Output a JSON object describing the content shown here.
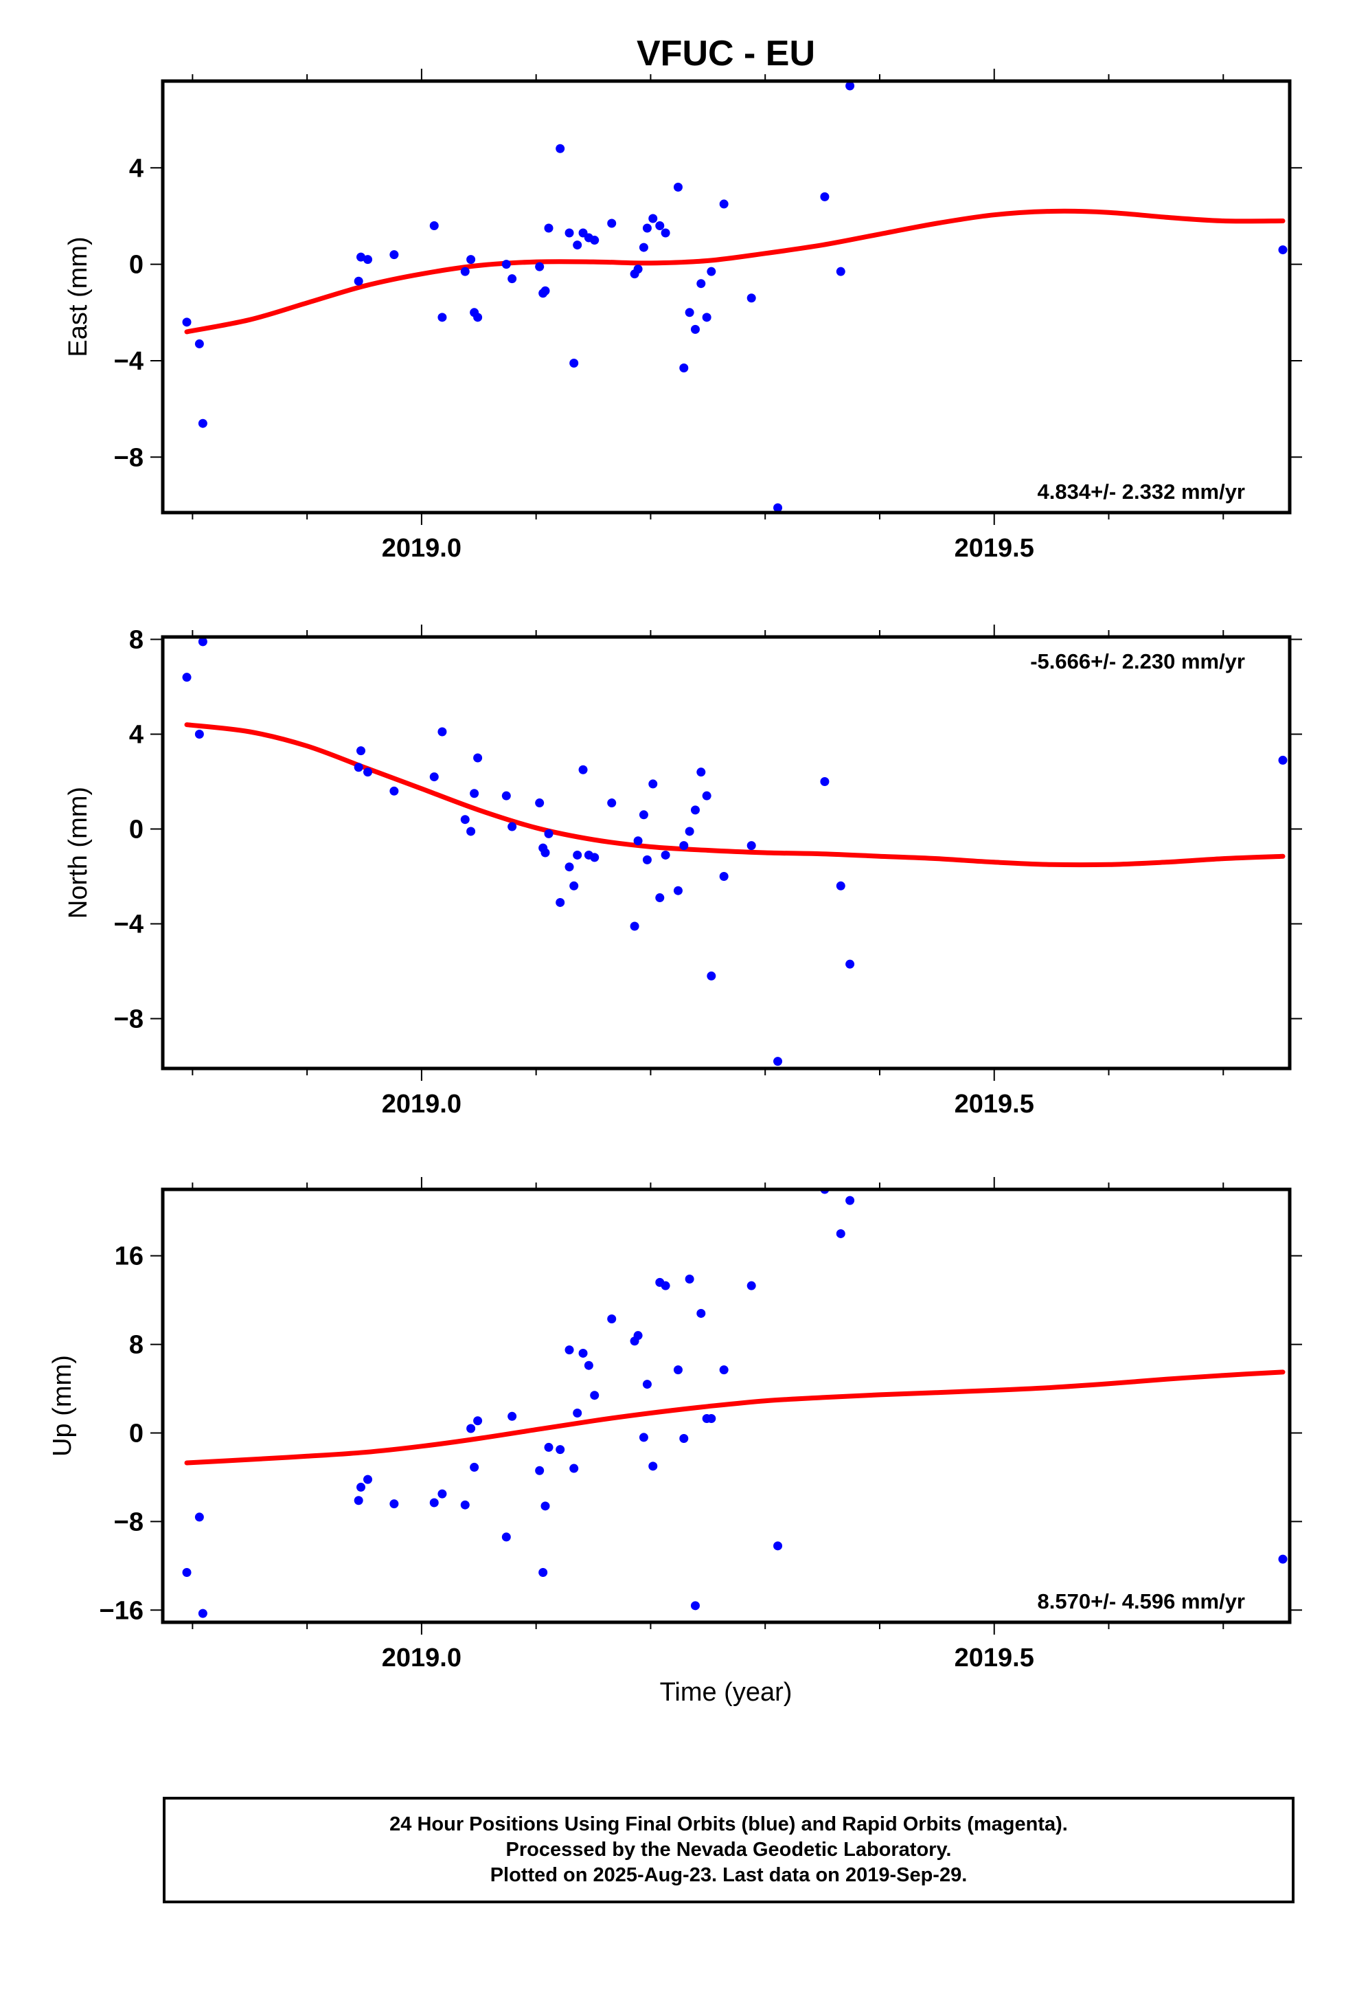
{
  "title": "VFUC - EU",
  "xlabel": "Time (year)",
  "caption": {
    "line1": "24 Hour Positions Using Final Orbits (blue) and Rapid Orbits (magenta).",
    "line2": "Processed by the Nevada Geodetic Laboratory.",
    "line3": "Plotted on 2025-Aug-23. Last data on 2019-Sep-29."
  },
  "colors": {
    "points": "#0000ff",
    "fit": "#ff0000",
    "axes": "#000000"
  },
  "chart_data": [
    {
      "type": "scatter",
      "ylabel": "East (mm)",
      "rate_label": "4.834+/- 2.332 mm/yr",
      "rate_position": "bottom-right",
      "xlim": [
        2018.774,
        2019.758
      ],
      "ylim": [
        -10.3,
        7.6
      ],
      "x_ticks": [
        2019.0,
        2019.5
      ],
      "x_tick_labels": [
        "2019.0",
        "2019.5"
      ],
      "x_minor_ticks": [
        2018.8,
        2018.9,
        2019.1,
        2019.2,
        2019.3,
        2019.4,
        2019.6,
        2019.7
      ],
      "y_ticks": [
        4,
        0,
        -4,
        -8
      ],
      "y_tick_labels": [
        "4",
        "0",
        "−4",
        "−8"
      ],
      "grid": false,
      "series": [
        {
          "kind": "points",
          "x": [
            2018.795,
            2018.806,
            2018.809,
            2018.945,
            2018.947,
            2018.953,
            2018.976,
            2019.011,
            2019.018,
            2019.038,
            2019.043,
            2019.046,
            2019.049,
            2019.074,
            2019.079,
            2019.103,
            2019.106,
            2019.108,
            2019.111,
            2019.121,
            2019.129,
            2019.133,
            2019.136,
            2019.141,
            2019.146,
            2019.151,
            2019.166,
            2019.186,
            2019.189,
            2019.194,
            2019.197,
            2019.202,
            2019.208,
            2019.213,
            2019.224,
            2019.229,
            2019.234,
            2019.239,
            2019.244,
            2019.249,
            2019.253,
            2019.264,
            2019.288,
            2019.311,
            2019.352,
            2019.366,
            2019.374,
            2019.752
          ],
          "y": [
            -2.4,
            -3.3,
            -6.6,
            -0.7,
            0.3,
            0.2,
            0.4,
            1.6,
            -2.2,
            -0.3,
            0.2,
            -2.0,
            -2.2,
            0.0,
            -0.6,
            -0.1,
            -1.2,
            -1.1,
            1.5,
            4.8,
            1.3,
            -4.1,
            0.8,
            1.3,
            1.1,
            1.0,
            1.7,
            -0.4,
            -0.2,
            0.7,
            1.5,
            1.9,
            1.6,
            1.3,
            3.2,
            -4.3,
            -2.0,
            -2.7,
            -0.8,
            -2.2,
            -0.3,
            2.5,
            -1.4,
            -10.1,
            2.8,
            -0.3,
            7.4,
            0.6
          ]
        },
        {
          "kind": "fit",
          "x": [
            2018.795,
            2018.85,
            2018.9,
            2018.95,
            2019.0,
            2019.05,
            2019.1,
            2019.15,
            2019.2,
            2019.25,
            2019.3,
            2019.35,
            2019.4,
            2019.45,
            2019.5,
            2019.55,
            2019.6,
            2019.65,
            2019.7,
            2019.752
          ],
          "y": [
            -2.8,
            -2.3,
            -1.6,
            -0.9,
            -0.4,
            -0.05,
            0.1,
            0.1,
            0.05,
            0.15,
            0.45,
            0.8,
            1.25,
            1.7,
            2.05,
            2.2,
            2.15,
            1.95,
            1.8,
            1.8
          ]
        }
      ]
    },
    {
      "type": "scatter",
      "ylabel": "North (mm)",
      "rate_label": "-5.666+/- 2.230 mm/yr",
      "rate_position": "top-right",
      "xlim": [
        2018.774,
        2019.758
      ],
      "ylim": [
        -10.1,
        8.1
      ],
      "x_ticks": [
        2019.0,
        2019.5
      ],
      "x_tick_labels": [
        "2019.0",
        "2019.5"
      ],
      "x_minor_ticks": [
        2018.8,
        2018.9,
        2019.1,
        2019.2,
        2019.3,
        2019.4,
        2019.6,
        2019.7
      ],
      "y_ticks": [
        8,
        4,
        0,
        -4,
        -8
      ],
      "y_tick_labels": [
        "8",
        "4",
        "0",
        "−4",
        "−8"
      ],
      "grid": false,
      "series": [
        {
          "kind": "points",
          "x": [
            2018.795,
            2018.806,
            2018.809,
            2018.945,
            2018.947,
            2018.953,
            2018.976,
            2019.011,
            2019.018,
            2019.038,
            2019.043,
            2019.046,
            2019.049,
            2019.074,
            2019.079,
            2019.103,
            2019.106,
            2019.108,
            2019.111,
            2019.121,
            2019.129,
            2019.133,
            2019.136,
            2019.141,
            2019.146,
            2019.151,
            2019.166,
            2019.186,
            2019.189,
            2019.194,
            2019.197,
            2019.202,
            2019.208,
            2019.213,
            2019.224,
            2019.229,
            2019.234,
            2019.239,
            2019.244,
            2019.249,
            2019.253,
            2019.264,
            2019.288,
            2019.311,
            2019.352,
            2019.366,
            2019.374,
            2019.752
          ],
          "y": [
            6.4,
            4.0,
            7.9,
            2.6,
            3.3,
            2.4,
            1.6,
            2.2,
            4.1,
            0.4,
            -0.1,
            1.5,
            3.0,
            1.4,
            0.1,
            1.1,
            -0.8,
            -1.0,
            -0.2,
            -3.1,
            -1.6,
            -2.4,
            -1.1,
            2.5,
            -1.1,
            -1.2,
            1.1,
            -4.1,
            -0.5,
            0.6,
            -1.3,
            1.9,
            -2.9,
            -1.1,
            -2.6,
            -0.7,
            -0.1,
            0.8,
            2.4,
            1.4,
            -6.2,
            -2.0,
            -0.7,
            -9.8,
            2.0,
            -2.4,
            -5.7,
            2.9
          ]
        },
        {
          "kind": "fit",
          "x": [
            2018.795,
            2018.85,
            2018.9,
            2018.95,
            2019.0,
            2019.05,
            2019.1,
            2019.15,
            2019.2,
            2019.25,
            2019.3,
            2019.35,
            2019.4,
            2019.45,
            2019.5,
            2019.55,
            2019.6,
            2019.65,
            2019.7,
            2019.752
          ],
          "y": [
            4.4,
            4.1,
            3.5,
            2.6,
            1.7,
            0.8,
            0.05,
            -0.45,
            -0.75,
            -0.9,
            -1.0,
            -1.05,
            -1.15,
            -1.25,
            -1.4,
            -1.5,
            -1.5,
            -1.4,
            -1.25,
            -1.15
          ]
        }
      ]
    },
    {
      "type": "scatter",
      "ylabel": "Up (mm)",
      "rate_label": "8.570+/- 4.596 mm/yr",
      "rate_position": "bottom-right",
      "xlim": [
        2018.774,
        2019.758
      ],
      "ylim": [
        -17.1,
        22.0
      ],
      "x_ticks": [
        2019.0,
        2019.5
      ],
      "x_tick_labels": [
        "2019.0",
        "2019.5"
      ],
      "x_minor_ticks": [
        2018.8,
        2018.9,
        2019.1,
        2019.2,
        2019.3,
        2019.4,
        2019.6,
        2019.7
      ],
      "y_ticks": [
        16,
        8,
        0,
        -8,
        -16
      ],
      "y_tick_labels": [
        "16",
        "8",
        "0",
        "−8",
        "−16"
      ],
      "grid": false,
      "series": [
        {
          "kind": "points",
          "x": [
            2018.795,
            2018.806,
            2018.809,
            2018.945,
            2018.947,
            2018.953,
            2018.976,
            2019.011,
            2019.018,
            2019.038,
            2019.043,
            2019.046,
            2019.049,
            2019.074,
            2019.079,
            2019.103,
            2019.106,
            2019.108,
            2019.111,
            2019.121,
            2019.129,
            2019.133,
            2019.136,
            2019.141,
            2019.146,
            2019.151,
            2019.166,
            2019.186,
            2019.189,
            2019.194,
            2019.197,
            2019.202,
            2019.208,
            2019.213,
            2019.224,
            2019.229,
            2019.234,
            2019.239,
            2019.244,
            2019.249,
            2019.253,
            2019.264,
            2019.288,
            2019.311,
            2019.352,
            2019.366,
            2019.374,
            2019.752
          ],
          "y": [
            -12.6,
            -7.6,
            -16.3,
            -6.1,
            -4.9,
            -4.2,
            -6.4,
            -6.3,
            -5.5,
            -6.5,
            0.4,
            -3.1,
            1.1,
            -9.4,
            1.5,
            -3.4,
            -12.6,
            -6.6,
            -1.3,
            -1.5,
            7.5,
            -3.2,
            1.8,
            7.2,
            6.1,
            3.4,
            10.3,
            8.3,
            8.8,
            -0.4,
            4.4,
            -3.0,
            13.6,
            13.3,
            5.7,
            -0.5,
            13.9,
            -15.6,
            10.8,
            1.3,
            1.3,
            5.7,
            13.3,
            -10.2,
            22.0,
            18.0,
            21.0,
            -11.4
          ]
        },
        {
          "kind": "fit",
          "x": [
            2018.795,
            2018.85,
            2018.9,
            2018.95,
            2019.0,
            2019.05,
            2019.1,
            2019.15,
            2019.2,
            2019.25,
            2019.3,
            2019.35,
            2019.4,
            2019.45,
            2019.5,
            2019.55,
            2019.6,
            2019.65,
            2019.7,
            2019.752
          ],
          "y": [
            -2.7,
            -2.4,
            -2.1,
            -1.75,
            -1.2,
            -0.5,
            0.3,
            1.1,
            1.8,
            2.4,
            2.9,
            3.2,
            3.45,
            3.65,
            3.85,
            4.1,
            4.45,
            4.85,
            5.2,
            5.5
          ]
        }
      ]
    }
  ]
}
